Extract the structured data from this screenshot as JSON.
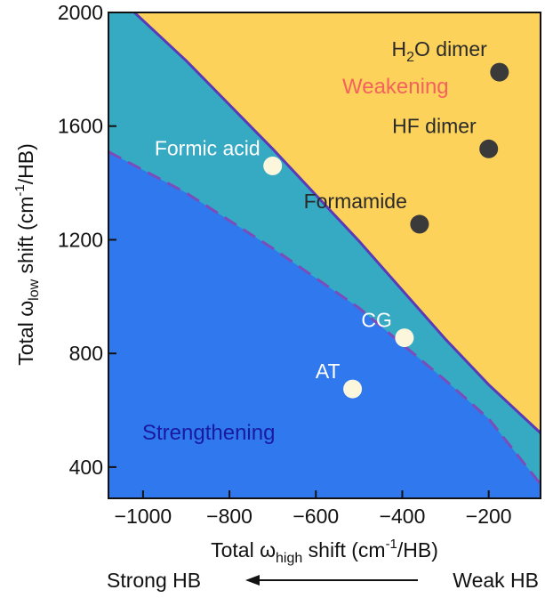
{
  "chart_data": {
    "type": "scatter",
    "title": "",
    "xlabel": {
      "prefix": "Total ω",
      "sub": "high",
      "middle": " shift (cm",
      "sup": "-1",
      "suffix": "/HB)"
    },
    "ylabel": {
      "prefix": "Total ω",
      "sub": "low",
      "middle": " shift (cm",
      "sup": "-1",
      "suffix": "/HB)"
    },
    "xlim": [
      -1080,
      -80
    ],
    "ylim": [
      290,
      2000
    ],
    "x_ticks": [
      {
        "value": -1000,
        "label": "−1000"
      },
      {
        "value": -800,
        "label": "−800"
      },
      {
        "value": -600,
        "label": "−600"
      },
      {
        "value": -400,
        "label": "−400"
      },
      {
        "value": -200,
        "label": "−200"
      }
    ],
    "y_ticks": [
      {
        "value": 400,
        "label": "400"
      },
      {
        "value": 800,
        "label": "800"
      },
      {
        "value": 1200,
        "label": "1200"
      },
      {
        "value": 1600,
        "label": "1600"
      },
      {
        "value": 2000,
        "label": "2000"
      }
    ],
    "regions": [
      {
        "label": "Weakening",
        "color": "#FDD25A",
        "label_color": "#F4625E"
      },
      {
        "label": "",
        "color": "#36A9C3"
      },
      {
        "label": "Strengthening",
        "color": "#2F78EE",
        "label_color": "#1A1AA0"
      }
    ],
    "boundary_solid": {
      "color": "#5A3AB8",
      "points": [
        [
          -1020,
          2000
        ],
        [
          -900,
          1830
        ],
        [
          -700,
          1520
        ],
        [
          -500,
          1195
        ],
        [
          -300,
          850
        ],
        [
          -200,
          690
        ],
        [
          -80,
          520
        ]
      ]
    },
    "boundary_dashed": {
      "color": "#7B4DBA",
      "points": [
        [
          -1080,
          1510
        ],
        [
          -900,
          1365
        ],
        [
          -700,
          1170
        ],
        [
          -500,
          960
        ],
        [
          -300,
          705
        ],
        [
          -200,
          570
        ],
        [
          -80,
          340
        ]
      ]
    },
    "points": [
      {
        "name": "H₂O dimer",
        "label_parts": {
          "pre": "H",
          "sub": "2",
          "post": "O dimer"
        },
        "x": -175,
        "y": 1790,
        "color": "#3A3A3A",
        "label_color": "#2A2A2A"
      },
      {
        "name": "HF dimer",
        "label_parts": {
          "pre": "HF dimer",
          "sub": "",
          "post": ""
        },
        "x": -200,
        "y": 1520,
        "color": "#3A3A3A",
        "label_color": "#2A2A2A"
      },
      {
        "name": "Formamide",
        "label_parts": {
          "pre": "Formamide",
          "sub": "",
          "post": ""
        },
        "x": -360,
        "y": 1255,
        "color": "#3A3A3A",
        "label_color": "#2A2A2A"
      },
      {
        "name": "Formic acid",
        "label_parts": {
          "pre": "Formic acid",
          "sub": "",
          "post": ""
        },
        "x": -700,
        "y": 1460,
        "color": "#FBF6DC",
        "label_color": "#FFFFFF"
      },
      {
        "name": "CG",
        "label_parts": {
          "pre": "CG",
          "sub": "",
          "post": ""
        },
        "x": -395,
        "y": 855,
        "color": "#FBF6DC",
        "label_color": "#FFFFFF"
      },
      {
        "name": "AT",
        "label_parts": {
          "pre": "AT",
          "sub": "",
          "post": ""
        },
        "x": -515,
        "y": 675,
        "color": "#FBF6DC",
        "label_color": "#FFFFFF"
      }
    ],
    "arrow": {
      "left_label": "Strong HB",
      "right_label": "Weak HB",
      "direction": "left"
    }
  }
}
